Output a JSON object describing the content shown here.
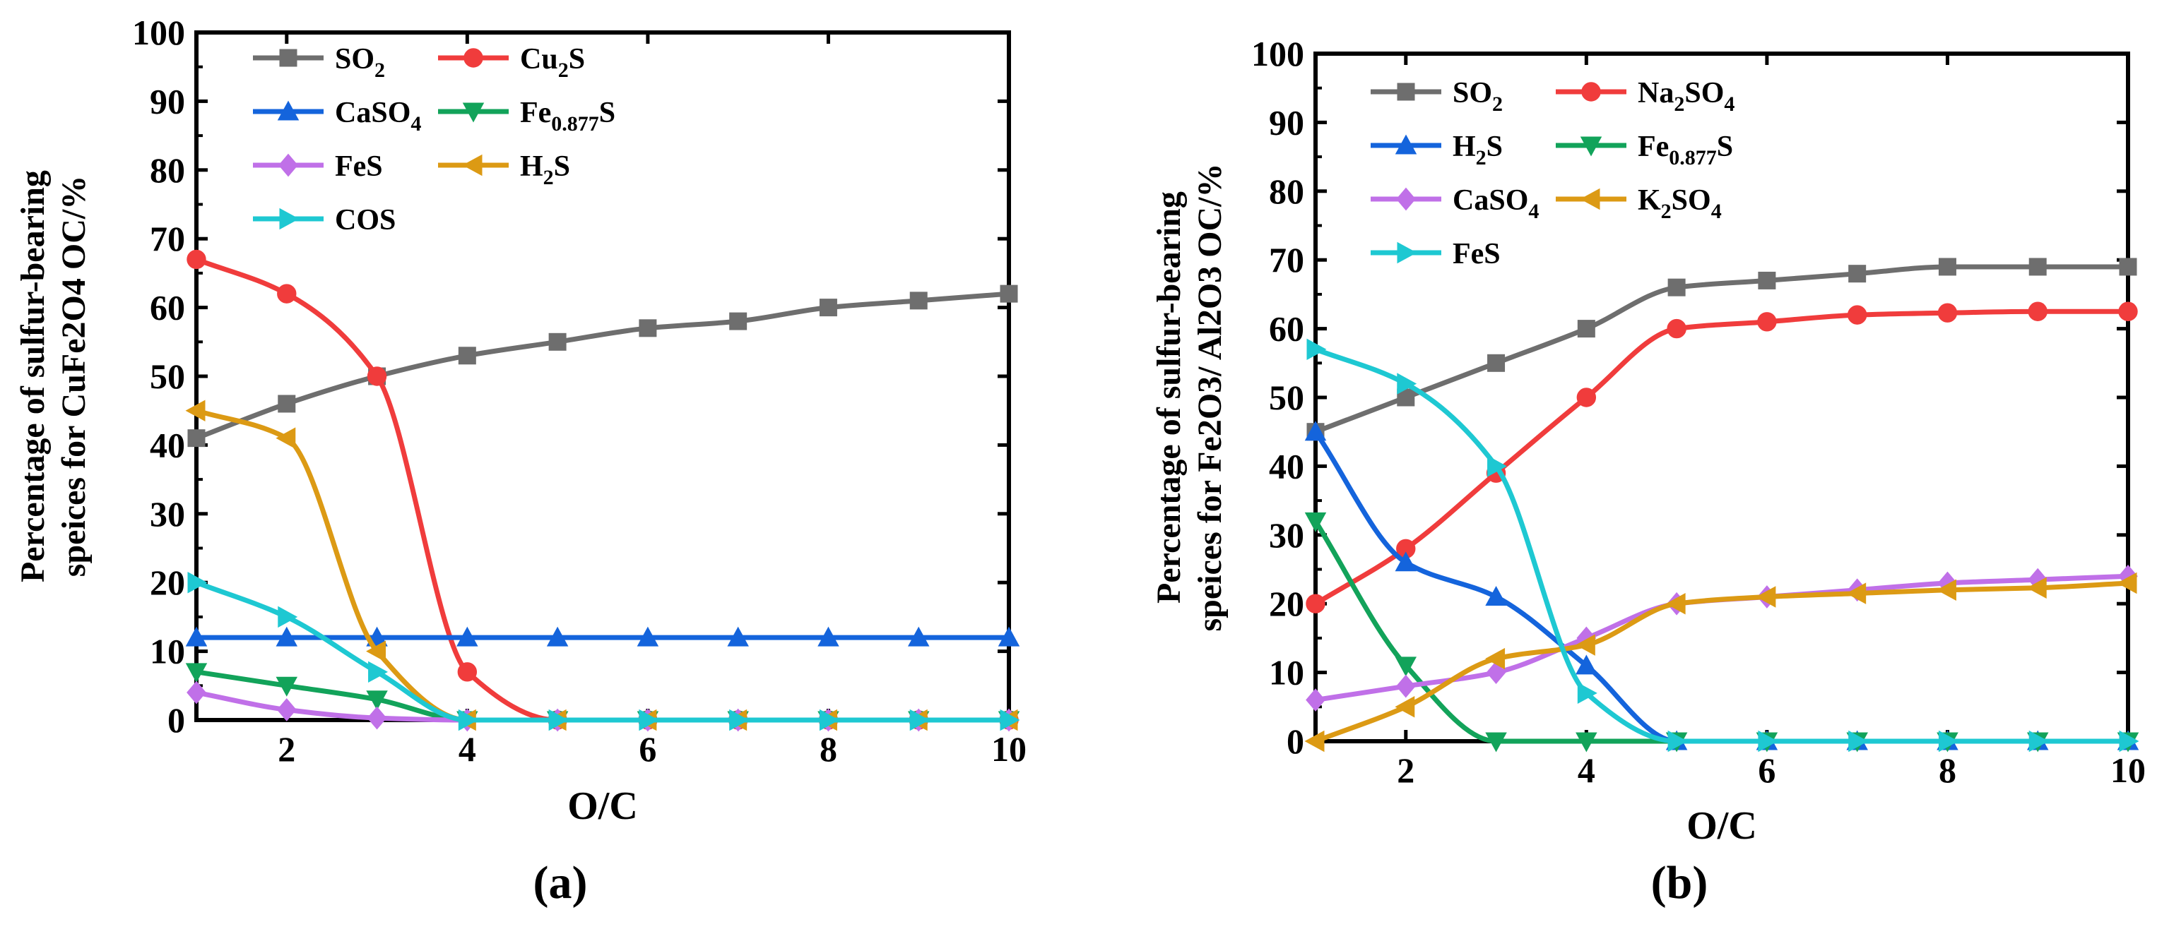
{
  "chart_data": [
    {
      "type": "line",
      "panel_label": "(a)",
      "xlabel": "O/C",
      "ylabel": [
        "Percentage of  sulfur-bearing",
        "speices for CuFe2O4 OC/%"
      ],
      "xlim": [
        1,
        10
      ],
      "ylim": [
        0,
        100
      ],
      "xticks": [
        2,
        4,
        6,
        8,
        10
      ],
      "yticks": [
        0,
        10,
        20,
        30,
        40,
        50,
        60,
        70,
        80,
        90,
        100
      ],
      "x": [
        1,
        2,
        3,
        4,
        5,
        6,
        7,
        8,
        9,
        10
      ],
      "series": [
        {
          "name": "SO2",
          "label": {
            "base": "SO",
            "sub": "2"
          },
          "color": "#6e6e6e",
          "marker": "square",
          "values": [
            41,
            46,
            50,
            53,
            55,
            57,
            58,
            60,
            61,
            62
          ]
        },
        {
          "name": "Cu2S",
          "label": {
            "base": "Cu",
            "sub": "2",
            "tail": "S"
          },
          "color": "#f03c3c",
          "marker": "circle",
          "values": [
            67,
            62,
            50,
            7,
            0,
            0,
            0,
            0,
            0,
            0
          ]
        },
        {
          "name": "CaSO4",
          "label": {
            "base": "CaSO",
            "sub": "4"
          },
          "color": "#1464dc",
          "marker": "triangle-up",
          "values": [
            12,
            12,
            12,
            12,
            12,
            12,
            12,
            12,
            12,
            12
          ]
        },
        {
          "name": "Fe0.877S",
          "label": {
            "base": "Fe",
            "sub": "0.877",
            "tail": "S"
          },
          "color": "#12a35a",
          "marker": "triangle-down",
          "values": [
            7,
            5,
            3,
            0,
            0,
            0,
            0,
            0,
            0,
            0
          ]
        },
        {
          "name": "FeS",
          "label": {
            "base": "FeS"
          },
          "color": "#c070e8",
          "marker": "diamond",
          "values": [
            4,
            1.5,
            0.3,
            0,
            0,
            0,
            0,
            0,
            0,
            0
          ]
        },
        {
          "name": "H2S",
          "label": {
            "base": "H",
            "sub": "2",
            "tail": "S"
          },
          "color": "#dc9a14",
          "marker": "triangle-left",
          "values": [
            45,
            41,
            10,
            0,
            0,
            0,
            0,
            0,
            0,
            0
          ]
        },
        {
          "name": "COS",
          "label": {
            "base": "COS"
          },
          "color": "#1ec8d2",
          "marker": "triangle-right",
          "values": [
            20,
            15,
            7,
            0,
            0,
            0,
            0,
            0,
            0,
            0
          ]
        }
      ]
    },
    {
      "type": "line",
      "panel_label": "(b)",
      "xlabel": "O/C",
      "ylabel": [
        "Percentage of  sulfur-bearing",
        "speices for Fe2O3/ Al2O3 OC/%"
      ],
      "xlim": [
        1,
        10
      ],
      "ylim": [
        0,
        100
      ],
      "xticks": [
        2,
        4,
        6,
        8,
        10
      ],
      "yticks": [
        0,
        10,
        20,
        30,
        40,
        50,
        60,
        70,
        80,
        90,
        100
      ],
      "x": [
        1,
        2,
        3,
        4,
        5,
        6,
        7,
        8,
        9,
        10
      ],
      "series": [
        {
          "name": "SO2",
          "label": {
            "base": "SO",
            "sub": "2"
          },
          "color": "#6e6e6e",
          "marker": "square",
          "values": [
            45,
            50,
            55,
            60,
            66,
            67,
            68,
            69,
            69,
            69
          ]
        },
        {
          "name": "Na2SO4",
          "label": {
            "base": "Na",
            "sub": "2",
            "tail": "SO",
            "sub2": "4"
          },
          "color": "#f03c3c",
          "marker": "circle",
          "values": [
            20,
            28,
            39,
            50,
            60,
            61,
            62,
            62.3,
            62.5,
            62.5
          ]
        },
        {
          "name": "H2S",
          "label": {
            "base": "H",
            "sub": "2",
            "tail": "S"
          },
          "color": "#1464dc",
          "marker": "triangle-up",
          "values": [
            45,
            26,
            21,
            11,
            0,
            0,
            0,
            0,
            0,
            0
          ]
        },
        {
          "name": "Fe0.877S",
          "label": {
            "base": "Fe",
            "sub": "0.877",
            "tail": "S"
          },
          "color": "#12a35a",
          "marker": "triangle-down",
          "values": [
            32,
            11,
            0,
            0,
            0,
            0,
            0,
            0,
            0,
            0
          ]
        },
        {
          "name": "CaSO4",
          "label": {
            "base": "CaSO",
            "sub": "4"
          },
          "color": "#c070e8",
          "marker": "diamond",
          "values": [
            6,
            8,
            10,
            15,
            20,
            21,
            22,
            23,
            23.5,
            24
          ]
        },
        {
          "name": "K2SO4",
          "label": {
            "base": "K",
            "sub": "2",
            "tail": "SO",
            "sub2": "4"
          },
          "color": "#dc9a14",
          "marker": "triangle-left",
          "values": [
            0,
            5,
            12,
            14,
            20,
            21,
            21.5,
            22,
            22.3,
            23
          ]
        },
        {
          "name": "FeS",
          "label": {
            "base": "FeS"
          },
          "color": "#1ec8d2",
          "marker": "triangle-right",
          "values": [
            57,
            52,
            40,
            7,
            0,
            0,
            0,
            0,
            0,
            0
          ]
        }
      ]
    }
  ]
}
